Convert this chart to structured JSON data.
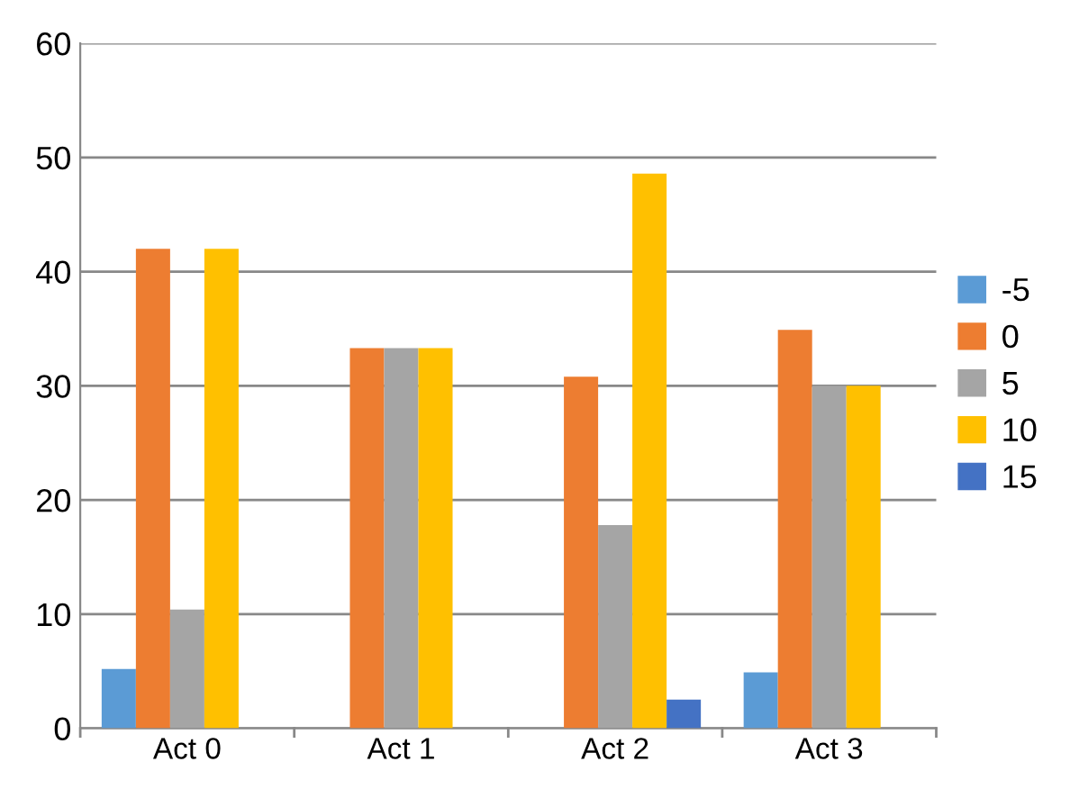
{
  "chart_data": {
    "type": "bar",
    "categories": [
      "Act 0",
      "Act 1",
      "Act 2",
      "Act 3"
    ],
    "series": [
      {
        "name": "-5",
        "color": "#5b9bd5",
        "values": [
          5.2,
          null,
          null,
          4.9
        ]
      },
      {
        "name": "0",
        "color": "#ed7d31",
        "values": [
          42.0,
          33.3,
          30.8,
          34.9
        ]
      },
      {
        "name": "5",
        "color": "#a5a5a5",
        "values": [
          10.4,
          33.3,
          17.8,
          30.0
        ]
      },
      {
        "name": "10",
        "color": "#ffc000",
        "values": [
          42.0,
          33.3,
          48.6,
          30.0
        ]
      },
      {
        "name": "15",
        "color": "#4472c4",
        "values": [
          null,
          null,
          2.5,
          null
        ]
      }
    ],
    "ylim": [
      0,
      60
    ],
    "yticks": [
      0,
      10,
      20,
      30,
      40,
      50,
      60
    ],
    "grid": "y",
    "legend": "right"
  }
}
